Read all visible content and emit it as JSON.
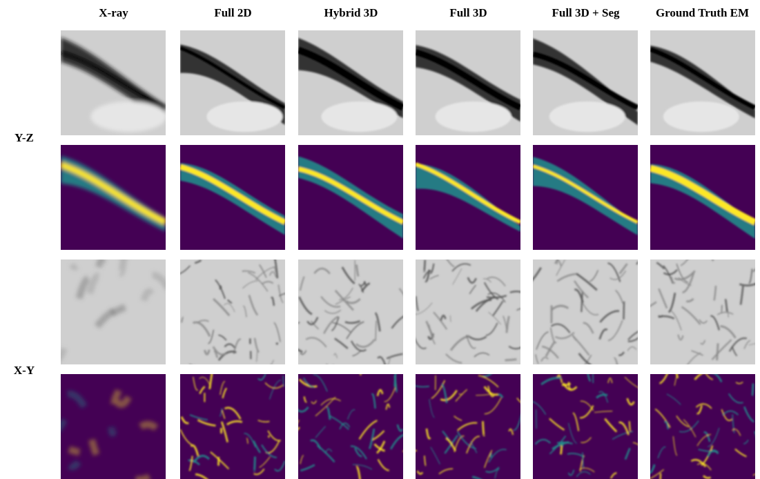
{
  "figure": {
    "columns": [
      "X-ray",
      "Full 2D",
      "Hybrid 3D",
      "Full 3D",
      "Full 3D + Seg",
      "Ground Truth EM"
    ],
    "row_groups": [
      "Y-Z",
      "X-Y"
    ],
    "rows": [
      {
        "group": "Y-Z",
        "kind": "grayscale"
      },
      {
        "group": "Y-Z",
        "kind": "viridis"
      },
      {
        "group": "X-Y",
        "kind": "grayscale"
      },
      {
        "group": "X-Y",
        "kind": "viridis"
      }
    ]
  },
  "colors": {
    "viridis_low": "#440154",
    "viridis_mid": "#21918c",
    "viridis_high": "#fde725",
    "gray_light": "#e6e6e6",
    "gray_dark": "#1a1a1a"
  }
}
